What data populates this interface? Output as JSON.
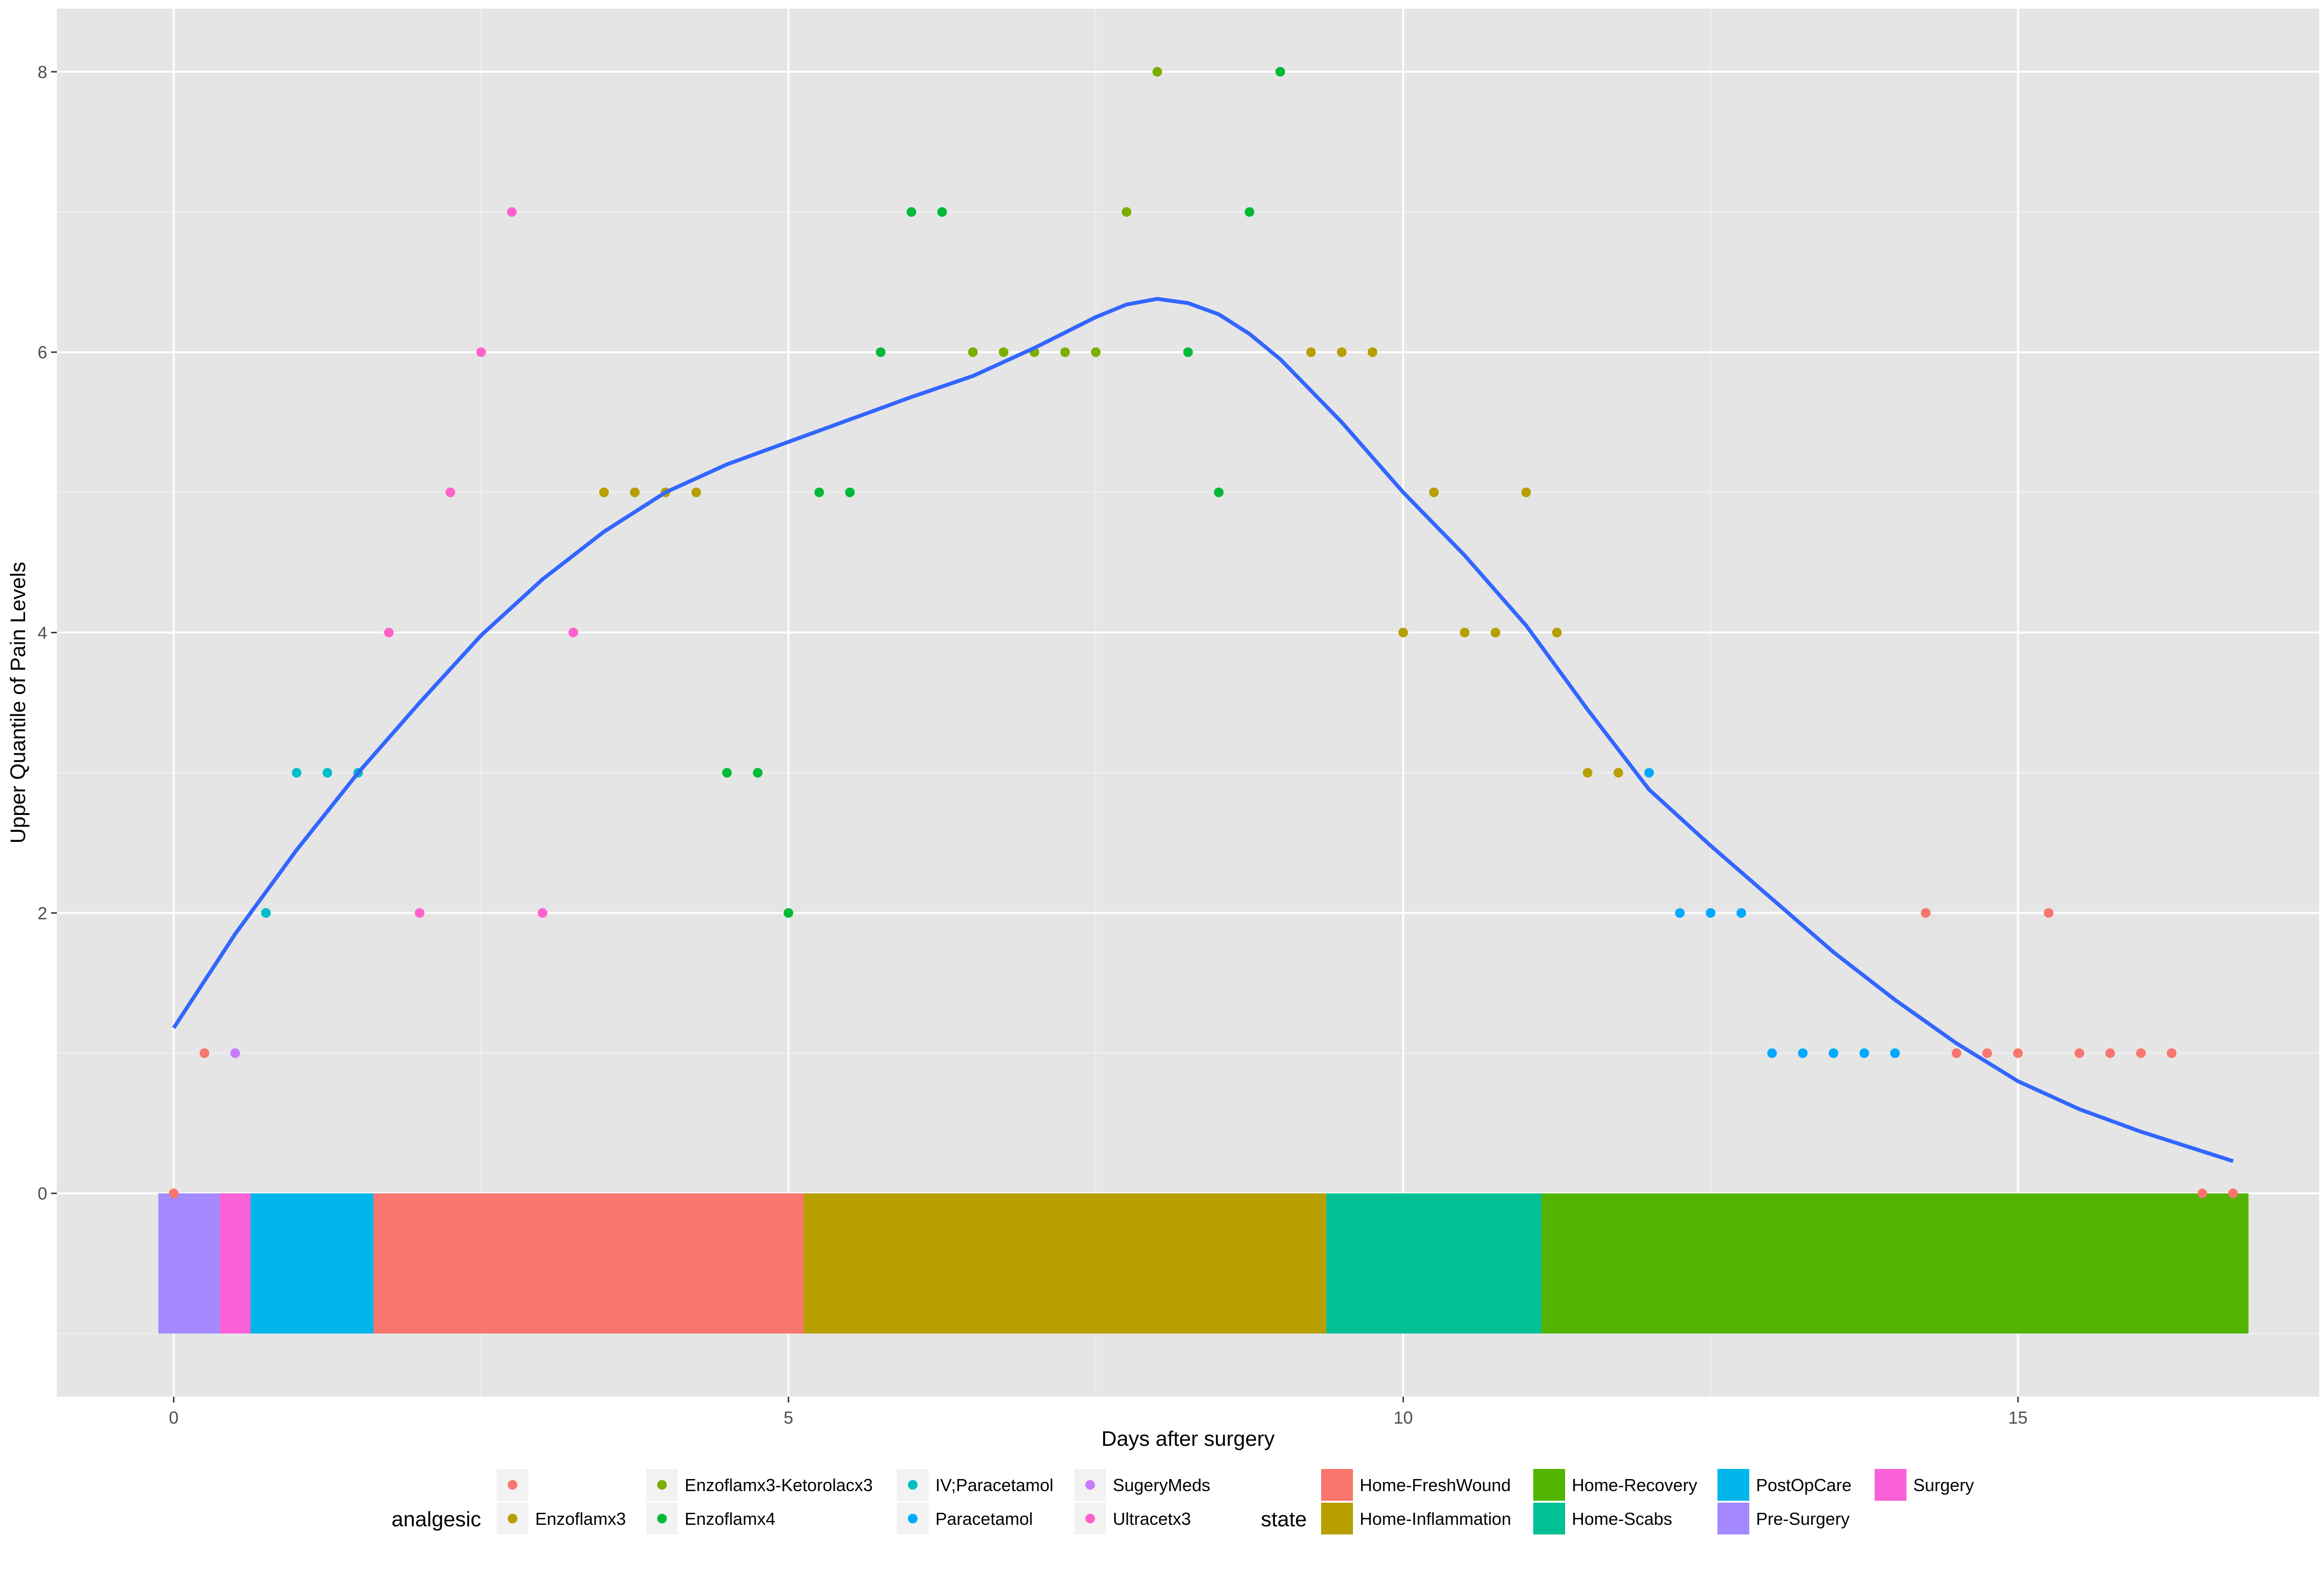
{
  "chart_data": {
    "type": "scatter",
    "xlabel": "Days after surgery",
    "ylabel": "Upper Quantile of Pain Levels",
    "xlim": [
      -0.95,
      17.45
    ],
    "ylim": [
      -1.45,
      8.45
    ],
    "x_ticks": [
      0,
      5,
      10,
      15
    ],
    "y_ticks": [
      0,
      2,
      4,
      6,
      8
    ],
    "x_tick_labels": [
      "0",
      "5",
      "10",
      "15"
    ],
    "y_tick_labels": [
      "0",
      "2",
      "4",
      "6",
      "8"
    ],
    "grid": true,
    "background": "#e5e5e5",
    "legend_position": "bottom",
    "analgesic_legend": {
      "title": "analgesic",
      "entries": [
        {
          "label": "",
          "color": "#F8766D"
        },
        {
          "label": "Enzoflamx3",
          "color": "#B79F00"
        },
        {
          "label": "Enzoflamx3-Ketorolacx3",
          "color": "#7CAE00"
        },
        {
          "label": "Enzoflamx4",
          "color": "#00BA38"
        },
        {
          "label": "IV;Paracetamol",
          "color": "#00BFC4"
        },
        {
          "label": "Paracetamol",
          "color": "#00A9FF"
        },
        {
          "label": "SugeryMeds",
          "color": "#C77CFF"
        },
        {
          "label": "Ultracetx3",
          "color": "#FF61CC"
        }
      ]
    },
    "state_legend": {
      "title": "state",
      "entries": [
        {
          "label": "Home-FreshWound",
          "color": "#F8766D"
        },
        {
          "label": "Home-Inflammation",
          "color": "#B79F00"
        },
        {
          "label": "Home-Recovery",
          "color": "#53B400"
        },
        {
          "label": "Home-Scabs",
          "color": "#00C094"
        },
        {
          "label": "PostOpCare",
          "color": "#00B6EB"
        },
        {
          "label": "Pre-Surgery",
          "color": "#A58AFF"
        },
        {
          "label": "Surgery",
          "color": "#FB61D7"
        }
      ]
    },
    "state_bars": [
      {
        "state": "Pre-Surgery",
        "x_start": -0.125,
        "x_end": 0.375
      },
      {
        "state": "Surgery",
        "x_start": 0.375,
        "x_end": 0.625
      },
      {
        "state": "PostOpCare",
        "x_start": 0.625,
        "x_end": 1.625
      },
      {
        "state": "Home-FreshWound",
        "x_start": 1.625,
        "x_end": 5.125
      },
      {
        "state": "Home-Inflammation",
        "x_start": 5.125,
        "x_end": 9.375
      },
      {
        "state": "Home-Scabs",
        "x_start": 9.375,
        "x_end": 11.125
      },
      {
        "state": "Home-Recovery",
        "x_start": 11.125,
        "x_end": 16.875
      }
    ],
    "state_bar_y_range": [
      -1,
      0
    ],
    "series": [
      {
        "name": "",
        "x": [
          0,
          0.25,
          14.25,
          14.5,
          14.75,
          15,
          15.25,
          15.5,
          15.75,
          16,
          16.25,
          16.5,
          16.75
        ],
        "y": [
          0,
          1,
          2,
          1,
          1,
          1,
          2,
          1,
          1,
          1,
          1,
          0,
          0
        ]
      },
      {
        "name": "Enzoflamx3",
        "x": [
          3.5,
          3.75,
          4,
          4.25,
          9.25,
          9.5,
          9.75,
          10,
          10.25,
          10.5,
          10.75,
          11,
          11.25,
          11.5,
          11.75
        ],
        "y": [
          5,
          5,
          5,
          5,
          6,
          6,
          6,
          4,
          5,
          4,
          4,
          5,
          4,
          3,
          3
        ]
      },
      {
        "name": "Enzoflamx3-Ketorolacx3",
        "x": [
          6.5,
          6.75,
          7,
          7.25,
          7.5,
          7.75,
          8
        ],
        "y": [
          6,
          6,
          6,
          6,
          6,
          7,
          8
        ]
      },
      {
        "name": "Enzoflamx4",
        "x": [
          4.5,
          4.75,
          5,
          5.25,
          5.5,
          5.75,
          6,
          6.25,
          8.25,
          8.5,
          8.75,
          9
        ],
        "y": [
          3,
          3,
          2,
          5,
          5,
          6,
          7,
          7,
          6,
          5,
          7,
          8
        ]
      },
      {
        "name": "IV;Paracetamol",
        "x": [
          0.75,
          1,
          1.25,
          1.5
        ],
        "y": [
          2,
          3,
          3,
          3
        ]
      },
      {
        "name": "Paracetamol",
        "x": [
          12,
          12.25,
          12.5,
          12.75,
          13,
          13.25,
          13.5,
          13.75,
          14
        ],
        "y": [
          3,
          2,
          2,
          2,
          1,
          1,
          1,
          1,
          1
        ]
      },
      {
        "name": "SugeryMeds",
        "x": [
          0.5
        ],
        "y": [
          1
        ]
      },
      {
        "name": "Ultracetx3",
        "x": [
          1.75,
          2,
          2.25,
          2.5,
          2.75,
          3,
          3.25
        ],
        "y": [
          4,
          2,
          5,
          6,
          7,
          2,
          4
        ]
      }
    ],
    "smooth_line": {
      "color": "#3366FF",
      "x": [
        0,
        0.5,
        1,
        1.5,
        2,
        2.5,
        3,
        3.5,
        4,
        4.5,
        5,
        5.5,
        6,
        6.5,
        7,
        7.5,
        7.75,
        8,
        8.25,
        8.5,
        8.75,
        9,
        9.5,
        10,
        10.5,
        11,
        11.5,
        12,
        12.5,
        13,
        13.5,
        14,
        14.5,
        15,
        15.5,
        16,
        16.5,
        16.75
      ],
      "y": [
        1.18,
        1.85,
        2.45,
        3.0,
        3.5,
        3.98,
        4.38,
        4.72,
        5.0,
        5.2,
        5.36,
        5.52,
        5.68,
        5.83,
        6.03,
        6.25,
        6.34,
        6.38,
        6.35,
        6.27,
        6.13,
        5.95,
        5.5,
        5.0,
        4.55,
        4.05,
        3.45,
        2.88,
        2.48,
        2.1,
        1.72,
        1.38,
        1.07,
        0.8,
        0.6,
        0.44,
        0.3,
        0.23
      ]
    }
  }
}
